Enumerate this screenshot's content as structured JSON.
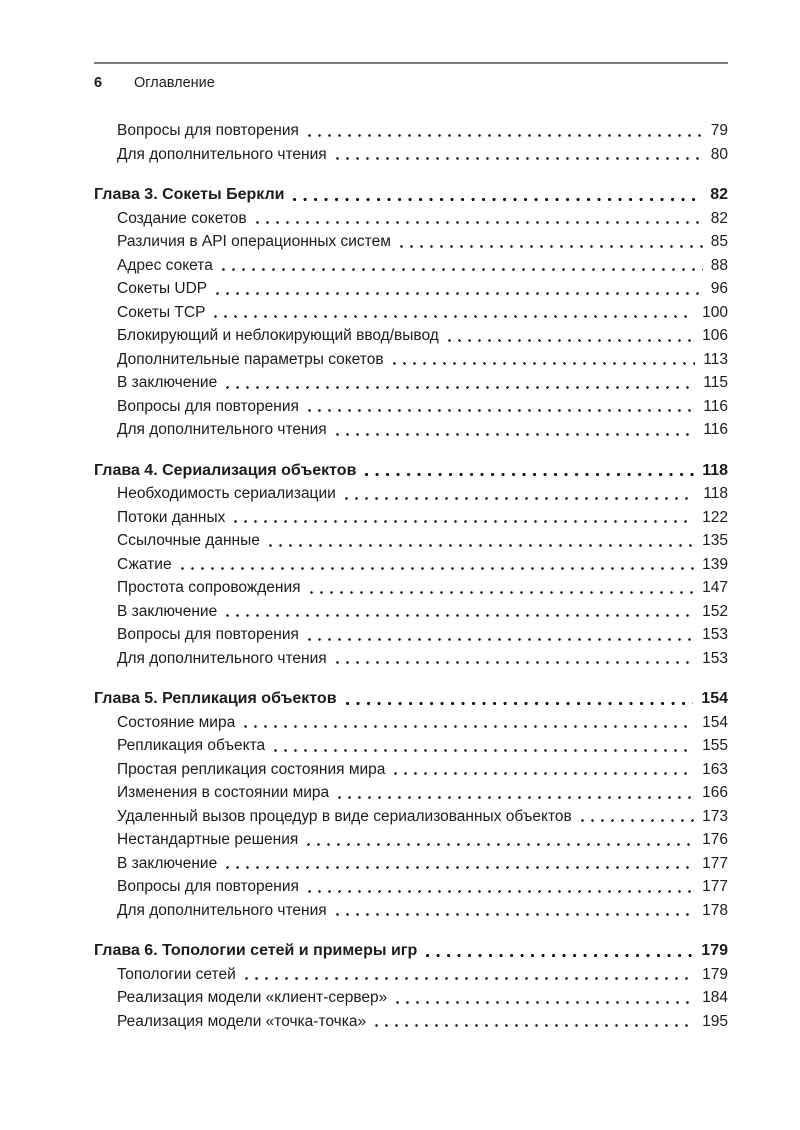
{
  "running_header": {
    "folio": "6",
    "title": "Оглавление"
  },
  "colors": {
    "background": "#ffffff",
    "text": "#1c1c1c",
    "rule": "#7d7d7d"
  },
  "toc": {
    "sections": [
      {
        "heading": null,
        "entries": [
          {
            "title": "Вопросы для повторения",
            "page": "79"
          },
          {
            "title": "Для дополнительного чтения",
            "page": "80"
          }
        ]
      },
      {
        "heading": {
          "title": "Глава 3. Сокеты Беркли",
          "page": "82"
        },
        "entries": [
          {
            "title": "Создание сокетов",
            "page": "82"
          },
          {
            "title": "Различия в API операционных систем",
            "page": "85"
          },
          {
            "title": "Адрес сокета",
            "page": "88"
          },
          {
            "title": "Сокеты UDP",
            "page": "96"
          },
          {
            "title": "Сокеты TCP",
            "page": "100"
          },
          {
            "title": "Блокирующий и неблокирующий ввод/вывод",
            "page": "106"
          },
          {
            "title": "Дополнительные параметры сокетов",
            "page": "113"
          },
          {
            "title": "В заключение",
            "page": "115"
          },
          {
            "title": "Вопросы для повторения",
            "page": "116"
          },
          {
            "title": "Для дополнительного чтения",
            "page": "116"
          }
        ]
      },
      {
        "heading": {
          "title": "Глава 4. Сериализация объектов",
          "page": "118"
        },
        "entries": [
          {
            "title": "Необходимость сериализации",
            "page": "118"
          },
          {
            "title": "Потоки данных",
            "page": "122"
          },
          {
            "title": "Ссылочные данные",
            "page": "135"
          },
          {
            "title": "Сжатие",
            "page": "139"
          },
          {
            "title": "Простота сопровождения",
            "page": "147"
          },
          {
            "title": "В заключение",
            "page": "152"
          },
          {
            "title": "Вопросы для повторения",
            "page": "153"
          },
          {
            "title": "Для дополнительного чтения",
            "page": "153"
          }
        ]
      },
      {
        "heading": {
          "title": "Глава 5. Репликация объектов",
          "page": "154"
        },
        "entries": [
          {
            "title": "Состояние мира",
            "page": "154"
          },
          {
            "title": "Репликация объекта",
            "page": "155"
          },
          {
            "title": "Простая репликация состояния мира",
            "page": "163"
          },
          {
            "title": "Изменения в состоянии мира",
            "page": "166"
          },
          {
            "title": "Удаленный вызов процедур в виде сериализованных объектов",
            "page": "173"
          },
          {
            "title": "Нестандартные решения",
            "page": "176"
          },
          {
            "title": "В заключение",
            "page": "177"
          },
          {
            "title": "Вопросы для повторения",
            "page": "177"
          },
          {
            "title": "Для дополнительного чтения",
            "page": "178"
          }
        ]
      },
      {
        "heading": {
          "title": "Глава 6. Топологии сетей и примеры игр",
          "page": "179"
        },
        "entries": [
          {
            "title": "Топологии сетей",
            "page": "179"
          },
          {
            "title": "Реализация модели «клиент-сервер»",
            "page": "184"
          },
          {
            "title": "Реализация модели «точка-точка»",
            "page": "195"
          }
        ]
      }
    ]
  }
}
